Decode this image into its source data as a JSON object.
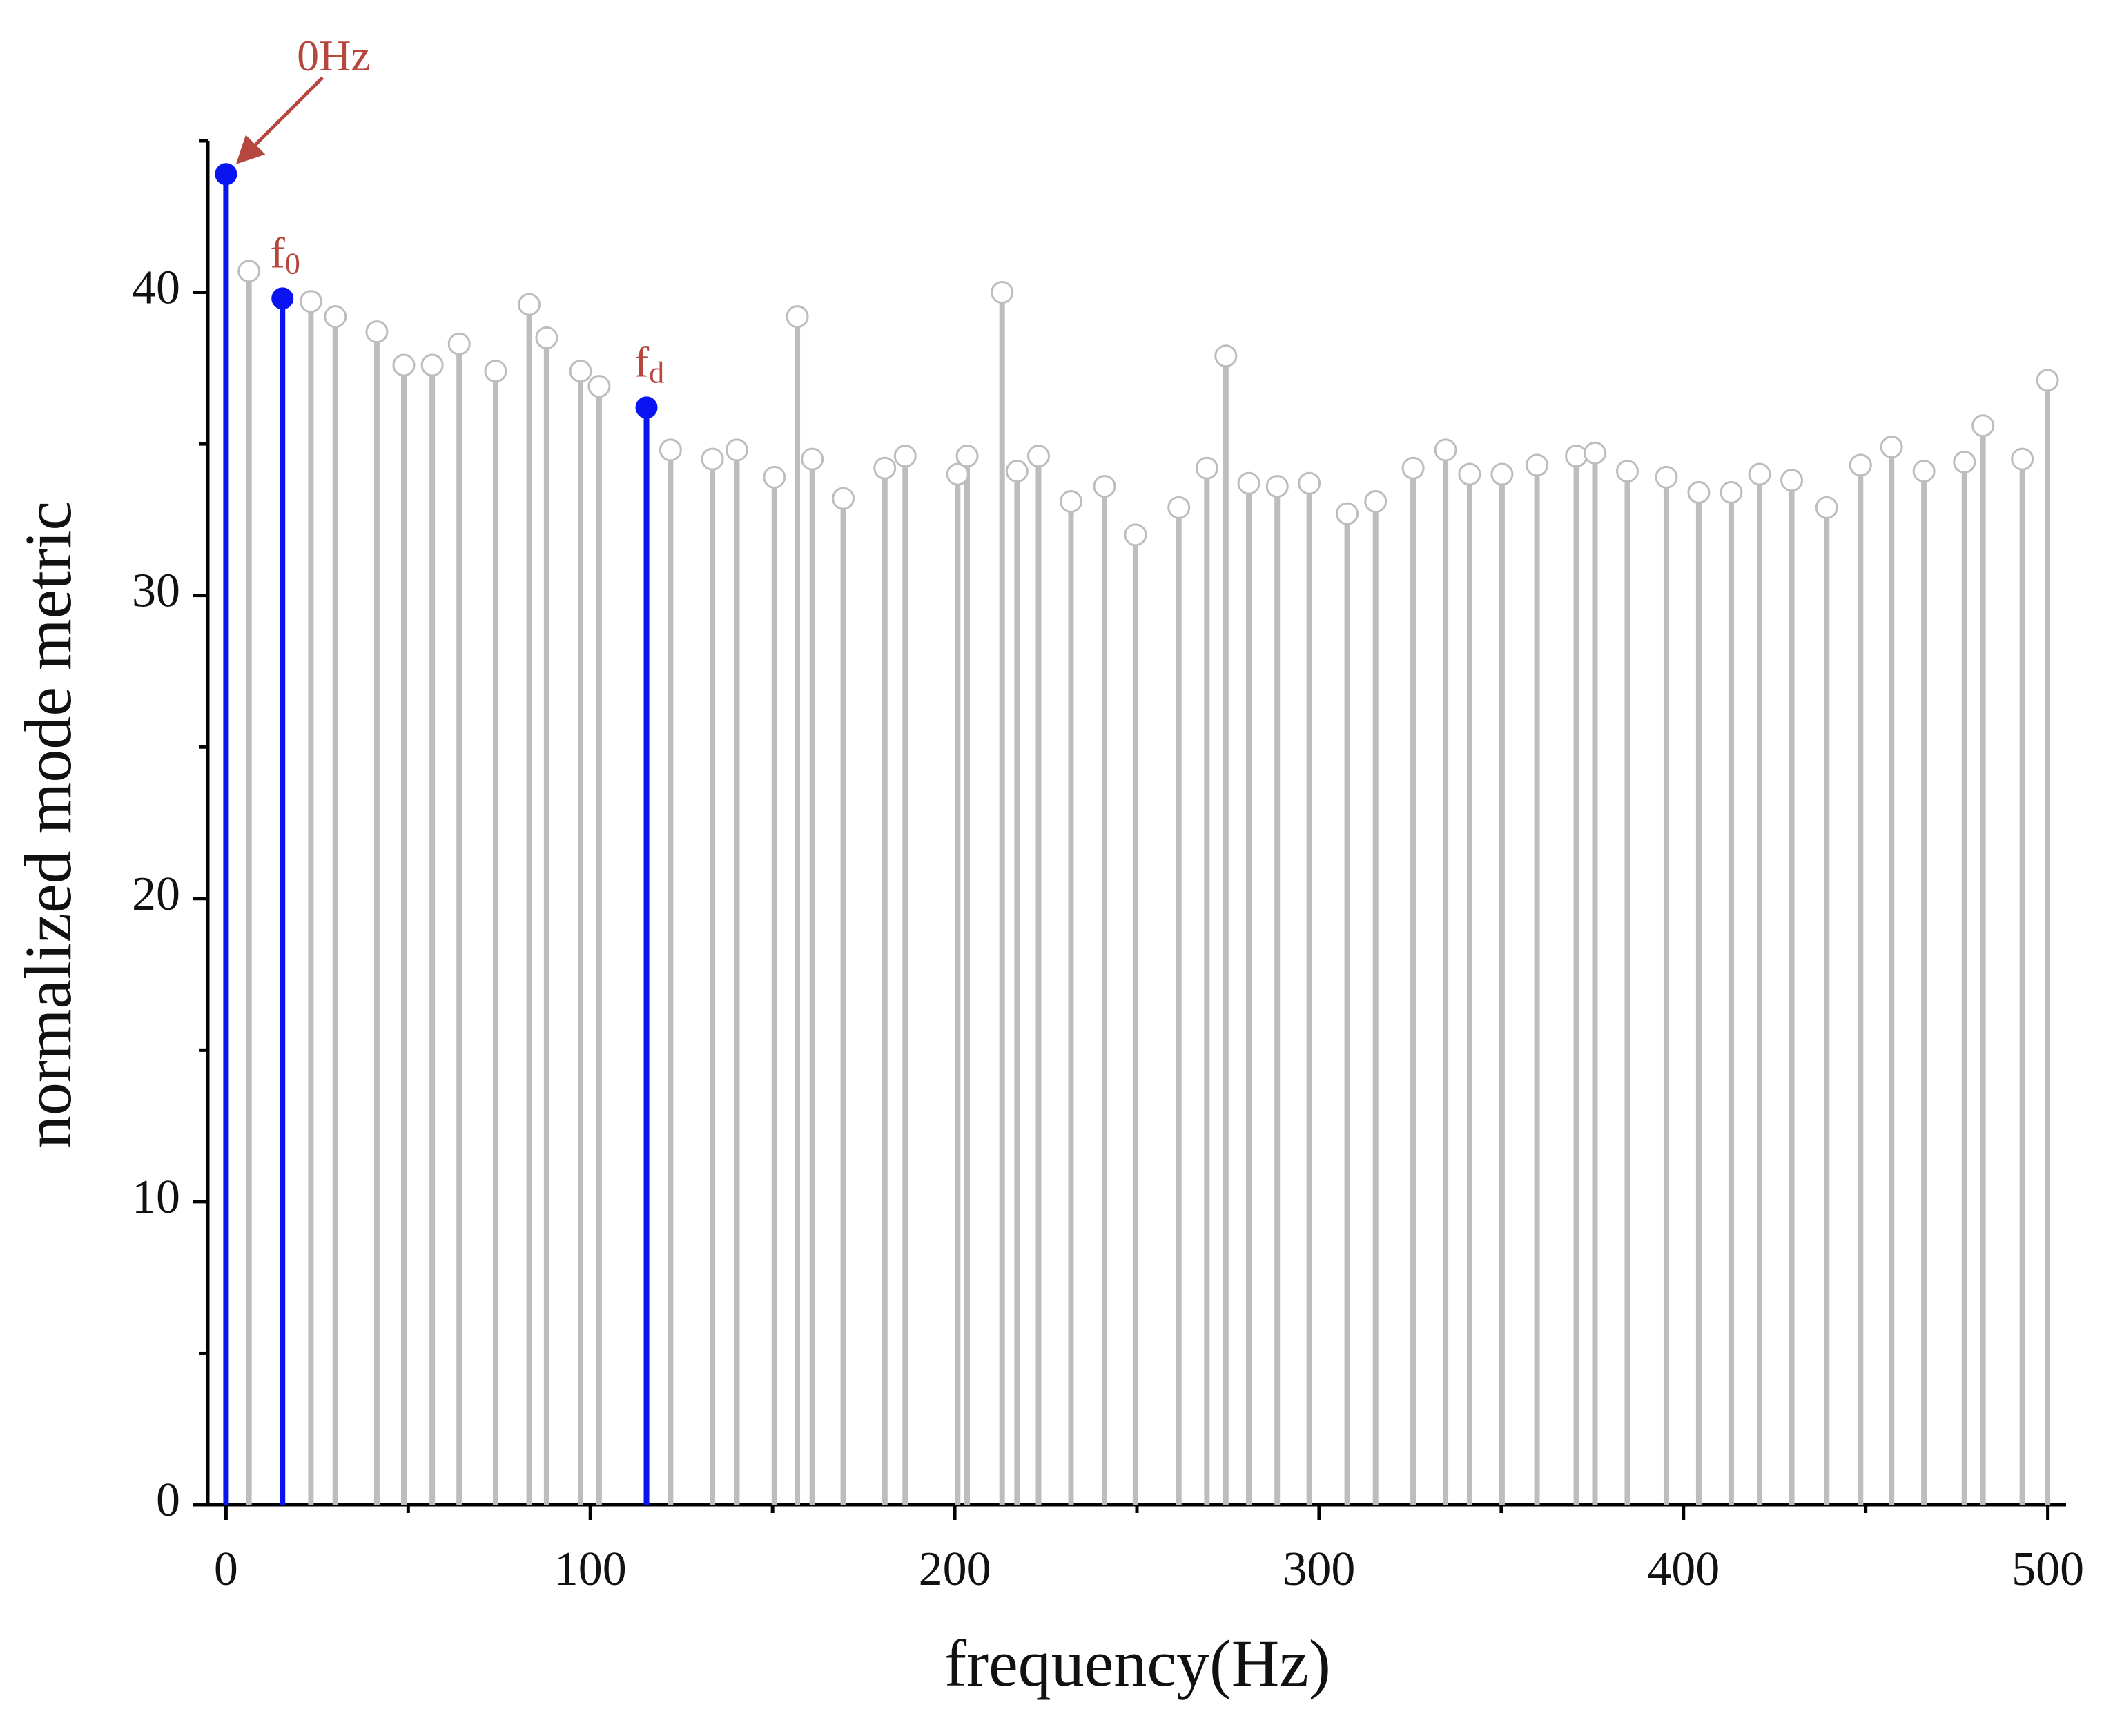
{
  "chart_data": {
    "type": "stem",
    "x_label": "frequency(Hz)",
    "y_label": "normalized mode metric",
    "xlim": [
      -5,
      505
    ],
    "ylim": [
      0,
      45
    ],
    "xticks": [
      0,
      100,
      200,
      300,
      400,
      500
    ],
    "yticks": [
      0,
      10,
      20,
      30,
      40
    ],
    "x_minor_ticks": [
      50,
      150,
      250,
      350,
      450
    ],
    "y_minor_ticks": [
      5,
      15,
      25,
      35,
      45
    ],
    "series": [
      {
        "color": "#0a14f0",
        "filled": true,
        "x": [
          0,
          15.5,
          115.4
        ],
        "values": [
          43.9,
          39.8,
          36.2
        ]
      },
      {
        "color": "#bdbdbd",
        "filled": false,
        "x": [
          6.3,
          23.3,
          30.0,
          41.4,
          48.8,
          56.6,
          64.0,
          74.0,
          83.2,
          88.0,
          97.3,
          102.4,
          122.0,
          133.5,
          140.2,
          150.5,
          156.8,
          160.9,
          169.4,
          180.8,
          186.4,
          200.8,
          203.4,
          213.0,
          217.1,
          223.0,
          231.9,
          241.1,
          249.6,
          261.5,
          269.2,
          274.4,
          280.7,
          288.5,
          297.3,
          307.7,
          315.5,
          325.8,
          334.7,
          341.3,
          350.2,
          359.8,
          370.6,
          375.7,
          384.6,
          395.3,
          404.2,
          413.1,
          420.9,
          429.7,
          439.3,
          448.6,
          457.1,
          466.0,
          477.1,
          482.2,
          493.0,
          499.9
        ],
        "values": [
          40.7,
          39.7,
          39.2,
          38.7,
          37.6,
          37.6,
          38.3,
          37.4,
          39.6,
          38.5,
          37.4,
          36.9,
          34.8,
          34.5,
          34.8,
          33.9,
          39.2,
          34.5,
          33.2,
          34.2,
          34.6,
          34.0,
          34.6,
          40.0,
          34.1,
          34.6,
          33.1,
          33.6,
          32.0,
          32.9,
          34.2,
          37.9,
          33.7,
          33.6,
          33.7,
          32.7,
          33.1,
          34.2,
          34.8,
          34.0,
          34.0,
          34.3,
          34.6,
          34.7,
          34.1,
          33.9,
          33.4,
          33.4,
          34.0,
          33.8,
          32.9,
          34.3,
          34.9,
          34.1,
          34.4,
          35.6,
          34.5,
          37.1
        ]
      }
    ],
    "annotations": [
      {
        "text": "0Hz"
      },
      {
        "text": "f",
        "sub": "0"
      },
      {
        "text": "f",
        "sub": "d"
      }
    ]
  }
}
